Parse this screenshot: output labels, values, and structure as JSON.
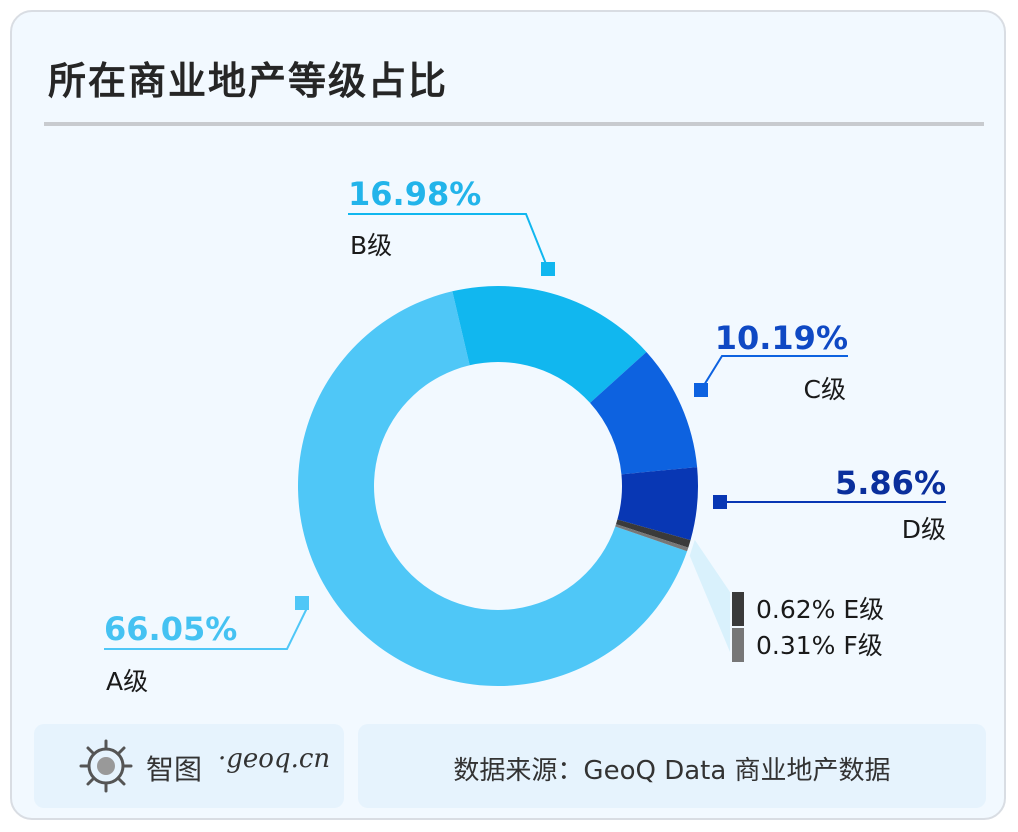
{
  "title": "所在商业地产等级占比",
  "chart_data": {
    "type": "pie",
    "variant": "donut",
    "slices": [
      {
        "label": "A级",
        "value": 66.05,
        "value_text": "66.05%",
        "color": "#4fc7f7"
      },
      {
        "label": "B级",
        "value": 16.98,
        "value_text": "16.98%",
        "color": "#11b7ef"
      },
      {
        "label": "C级",
        "value": 10.19,
        "value_text": "10.19%",
        "color": "#0d62e0"
      },
      {
        "label": "D级",
        "value": 5.86,
        "value_text": "5.86%",
        "color": "#0837b4"
      },
      {
        "label": "E级",
        "value": 0.62,
        "value_text": "0.62%",
        "color": "#3a3a3a"
      },
      {
        "label": "F级",
        "value": 0.31,
        "value_text": "0.31%",
        "color": "#777777"
      }
    ]
  },
  "footer": {
    "brand_name": "智图",
    "brand_url": "·geoq.cn",
    "source": "数据来源：GeoQ Data 商业地产数据"
  }
}
